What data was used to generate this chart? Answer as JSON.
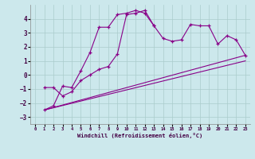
{
  "xlabel": "Windchill (Refroidissement éolien,°C)",
  "background_color": "#cce8ec",
  "grid_color": "#aacccc",
  "line_color": "#880088",
  "xlim": [
    -0.5,
    23.5
  ],
  "ylim": [
    -3.5,
    5.0
  ],
  "yticks": [
    -3,
    -2,
    -1,
    0,
    1,
    2,
    3,
    4
  ],
  "xticks": [
    0,
    1,
    2,
    3,
    4,
    5,
    6,
    7,
    8,
    9,
    10,
    11,
    12,
    13,
    14,
    15,
    16,
    17,
    18,
    19,
    20,
    21,
    22,
    23
  ],
  "line1_x": [
    1,
    2,
    3,
    4,
    5,
    6,
    7,
    8,
    9,
    10,
    11,
    12,
    13,
    14,
    15,
    16,
    17,
    18,
    19,
    20,
    21,
    22,
    23
  ],
  "line1_y": [
    -2.5,
    -2.2,
    -0.8,
    -0.9,
    0.3,
    1.6,
    3.4,
    3.4,
    4.3,
    4.4,
    4.6,
    4.4,
    3.5,
    2.6,
    2.4,
    2.5,
    3.6,
    3.5,
    3.5,
    2.2,
    2.8,
    2.5,
    1.4
  ],
  "line2_x": [
    1,
    2,
    3,
    4,
    5,
    6,
    7,
    8,
    9,
    10,
    11,
    12,
    13
  ],
  "line2_y": [
    -0.9,
    -0.9,
    -1.5,
    -1.2,
    -0.4,
    0.0,
    0.4,
    0.6,
    1.5,
    4.3,
    4.4,
    4.6,
    3.5
  ],
  "line3_x": [
    1,
    23
  ],
  "line3_y": [
    -2.5,
    1.4
  ],
  "line4_x": [
    1,
    23
  ],
  "line4_y": [
    -2.5,
    1.0
  ]
}
